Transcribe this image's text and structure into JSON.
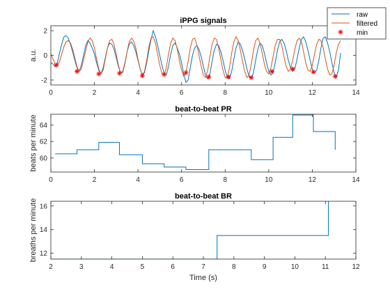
{
  "colors": {
    "raw": "#0072BD",
    "filtered": "#D95319",
    "min": "#FF0000",
    "axis": "#262626",
    "tick_text": "#262626"
  },
  "chart_data": [
    {
      "type": "line",
      "title": "iPPG signals",
      "xlabel": "",
      "ylabel": "a.u.",
      "xlim": [
        0,
        14
      ],
      "ylim": [
        -2.4,
        2.4
      ],
      "x_ticks": [
        0,
        2,
        4,
        6,
        8,
        10,
        12,
        14
      ],
      "y_ticks": [
        -2,
        0,
        2
      ],
      "legend": {
        "placement": "top-right",
        "entries": [
          "raw",
          "filtered",
          "min"
        ]
      },
      "series": [
        {
          "name": "raw",
          "style": "line",
          "x": [
            0.0,
            0.1,
            0.2,
            0.3,
            0.4,
            0.5,
            0.6,
            0.7,
            0.8,
            0.9,
            1.0,
            1.1,
            1.2,
            1.3,
            1.4,
            1.5,
            1.6,
            1.7,
            1.8,
            1.9,
            2.0,
            2.1,
            2.2,
            2.3,
            2.4,
            2.5,
            2.6,
            2.7,
            2.8,
            2.9,
            3.0,
            3.1,
            3.2,
            3.3,
            3.4,
            3.5,
            3.6,
            3.7,
            3.8,
            3.9,
            4.0,
            4.1,
            4.2,
            4.3,
            4.4,
            4.5,
            4.6,
            4.7,
            4.8,
            4.9,
            5.0,
            5.1,
            5.2,
            5.3,
            5.4,
            5.5,
            5.6,
            5.7,
            5.8,
            5.9,
            6.0,
            6.1,
            6.2,
            6.3,
            6.4,
            6.5,
            6.6,
            6.7,
            6.8,
            6.9,
            7.0,
            7.1,
            7.2,
            7.3,
            7.4,
            7.5,
            7.6,
            7.7,
            7.8,
            7.9,
            8.0,
            8.1,
            8.2,
            8.3,
            8.4,
            8.5,
            8.6,
            8.7,
            8.8,
            8.9,
            9.0,
            9.1,
            9.2,
            9.3,
            9.4,
            9.5,
            9.6,
            9.7,
            9.8,
            9.9,
            10.0,
            10.1,
            10.2,
            10.3,
            10.4,
            10.5,
            10.6,
            10.7,
            10.8,
            10.9,
            11.0,
            11.1,
            11.2,
            11.3,
            11.4,
            11.5,
            11.6,
            11.7,
            11.8,
            11.9,
            12.0,
            12.1,
            12.2,
            12.3,
            12.4,
            12.5,
            12.6,
            12.7,
            12.8,
            12.9,
            13.0,
            13.1,
            13.2,
            13.3
          ],
          "values": [
            -0.6,
            -0.7,
            -0.9,
            -0.6,
            0.2,
            0.9,
            1.5,
            1.6,
            1.4,
            0.9,
            0.3,
            -0.4,
            -1.0,
            -1.3,
            -0.8,
            0.0,
            0.8,
            1.2,
            1.0,
            0.6,
            0.1,
            -0.6,
            -1.2,
            -1.5,
            -1.0,
            -0.2,
            0.6,
            1.0,
            0.9,
            0.5,
            -0.2,
            -0.9,
            -1.4,
            -1.3,
            -0.6,
            0.3,
            0.9,
            1.1,
            0.8,
            0.3,
            -0.4,
            -1.1,
            -1.6,
            -1.4,
            -0.6,
            0.4,
            1.3,
            2.0,
            1.5,
            0.8,
            0.0,
            -0.8,
            -1.5,
            -1.6,
            -0.9,
            0.1,
            0.8,
            1.0,
            0.6,
            0.1,
            -0.6,
            -1.5,
            -2.2,
            -2.0,
            -1.0,
            0.0,
            0.6,
            0.8,
            0.5,
            -0.1,
            -0.9,
            -1.6,
            -1.9,
            -1.5,
            -0.5,
            0.4,
            0.9,
            0.8,
            0.3,
            -0.4,
            -1.2,
            -1.8,
            -1.9,
            -1.3,
            -0.3,
            0.6,
            1.1,
            0.9,
            0.4,
            -0.3,
            -1.1,
            -1.7,
            -1.9,
            -1.4,
            -0.4,
            0.5,
            1.0,
            0.8,
            0.2,
            -0.6,
            -1.3,
            -1.6,
            -1.4,
            -0.6,
            0.4,
            1.1,
            1.3,
            1.0,
            0.4,
            -0.4,
            -1.0,
            -1.3,
            -1.1,
            -0.3,
            0.6,
            1.3,
            1.5,
            1.1,
            0.4,
            -0.4,
            -1.1,
            -1.4,
            -1.2,
            -0.4,
            0.6,
            1.4,
            1.5,
            1.0,
            0.3,
            -0.6,
            -1.4,
            -1.8,
            -1.2,
            0.2
          ]
        },
        {
          "name": "filtered",
          "style": "line",
          "x": [
            0.0,
            0.1,
            0.2,
            0.3,
            0.4,
            0.5,
            0.6,
            0.7,
            0.8,
            0.9,
            1.0,
            1.1,
            1.2,
            1.3,
            1.4,
            1.5,
            1.6,
            1.7,
            1.8,
            1.9,
            2.0,
            2.1,
            2.2,
            2.3,
            2.4,
            2.5,
            2.6,
            2.7,
            2.8,
            2.9,
            3.0,
            3.1,
            3.2,
            3.3,
            3.4,
            3.5,
            3.6,
            3.7,
            3.8,
            3.9,
            4.0,
            4.1,
            4.2,
            4.3,
            4.4,
            4.5,
            4.6,
            4.7,
            4.8,
            4.9,
            5.0,
            5.1,
            5.2,
            5.3,
            5.4,
            5.5,
            5.6,
            5.7,
            5.8,
            5.9,
            6.0,
            6.1,
            6.2,
            6.3,
            6.4,
            6.5,
            6.6,
            6.7,
            6.8,
            6.9,
            7.0,
            7.1,
            7.2,
            7.3,
            7.4,
            7.5,
            7.6,
            7.7,
            7.8,
            7.9,
            8.0,
            8.1,
            8.2,
            8.3,
            8.4,
            8.5,
            8.6,
            8.7,
            8.8,
            8.9,
            9.0,
            9.1,
            9.2,
            9.3,
            9.4,
            9.5,
            9.6,
            9.7,
            9.8,
            9.9,
            10.0,
            10.1,
            10.2,
            10.3,
            10.4,
            10.5,
            10.6,
            10.7,
            10.8,
            10.9,
            11.0,
            11.1,
            11.2,
            11.3,
            11.4,
            11.5,
            11.6,
            11.7,
            11.8,
            11.9,
            12.0,
            12.1,
            12.2,
            12.3,
            12.4,
            12.5,
            12.6,
            12.7,
            12.8,
            12.9,
            13.0,
            13.1,
            13.2,
            13.3
          ],
          "values": [
            0.1,
            -0.3,
            -0.7,
            -0.8,
            -0.5,
            0.1,
            0.7,
            1.1,
            1.2,
            1.0,
            0.5,
            -0.2,
            -0.9,
            -1.3,
            -1.1,
            -0.4,
            0.4,
            1.1,
            1.4,
            1.2,
            0.6,
            -0.3,
            -1.1,
            -1.5,
            -1.2,
            -0.3,
            0.6,
            1.2,
            1.3,
            0.9,
            0.1,
            -0.8,
            -1.4,
            -1.4,
            -0.7,
            0.3,
            1.1,
            1.4,
            1.2,
            0.6,
            -0.3,
            -1.1,
            -1.6,
            -1.3,
            -0.4,
            0.7,
            1.4,
            1.5,
            1.0,
            0.1,
            -0.8,
            -1.5,
            -1.6,
            -1.0,
            0.1,
            1.0,
            1.4,
            1.2,
            0.5,
            -0.4,
            -1.2,
            -1.7,
            -1.4,
            -0.5,
            0.6,
            1.3,
            1.4,
            0.9,
            0.0,
            -0.9,
            -1.6,
            -1.8,
            -1.2,
            -0.1,
            0.9,
            1.4,
            1.3,
            0.6,
            -0.3,
            -1.2,
            -1.8,
            -1.8,
            -1.0,
            0.2,
            1.1,
            1.5,
            1.2,
            0.4,
            -0.5,
            -1.3,
            -1.8,
            -1.6,
            -0.7,
            0.4,
            1.2,
            1.4,
            1.0,
            0.2,
            -0.7,
            -1.3,
            -1.5,
            -1.0,
            -0.1,
            0.8,
            1.3,
            1.3,
            0.8,
            -0.1,
            -0.9,
            -1.3,
            -1.1,
            -0.4,
            0.5,
            1.2,
            1.4,
            1.1,
            0.3,
            -0.6,
            -1.2,
            -1.3,
            -0.8,
            0.1,
            0.9,
            1.3,
            1.2,
            0.6,
            -0.3,
            -1.1,
            -1.6,
            -1.5,
            -0.8,
            0.2,
            0.9,
            1.2
          ]
        },
        {
          "name": "min",
          "style": "marker",
          "x": [
            0.25,
            1.2,
            2.2,
            3.15,
            4.2,
            5.2,
            6.2,
            7.25,
            8.15,
            9.2,
            10.15,
            11.1,
            12.05,
            13.05
          ],
          "values": [
            -0.8,
            -1.3,
            -1.5,
            -1.45,
            -1.65,
            -1.55,
            -1.4,
            -1.75,
            -1.75,
            -1.8,
            -1.3,
            -1.1,
            -1.35,
            -1.7
          ]
        }
      ]
    },
    {
      "type": "line",
      "title": "beat-to-beat PR",
      "xlabel": "",
      "ylabel": "beats per minute",
      "xlim": [
        0,
        14
      ],
      "ylim": [
        58.3,
        65.3
      ],
      "x_ticks": [
        0,
        2,
        4,
        6,
        8,
        10,
        12,
        14
      ],
      "y_ticks": [
        60,
        62,
        64
      ],
      "series": [
        {
          "name": "",
          "style": "step",
          "x": [
            0.2,
            1.2,
            2.2,
            3.15,
            4.2,
            5.2,
            6.2,
            7.25,
            9.2,
            10.2,
            11.1,
            12.05,
            13.05
          ],
          "values": [
            60.5,
            61.0,
            61.9,
            60.4,
            59.3,
            58.9,
            58.6,
            61.0,
            59.8,
            62.5,
            65.2,
            63.2,
            61.0
          ]
        }
      ]
    },
    {
      "type": "line",
      "title": "beat-to-beat BR",
      "xlabel": "Time (s)",
      "ylabel": "breaths per minute",
      "xlim": [
        2,
        12
      ],
      "ylim": [
        11.5,
        16.4
      ],
      "x_ticks": [
        2,
        3,
        4,
        5,
        6,
        7,
        8,
        9,
        10,
        11,
        12
      ],
      "y_ticks": [
        12,
        14,
        16
      ],
      "series": [
        {
          "name": "",
          "style": "step",
          "x": [
            2.0,
            7.45,
            11.1
          ],
          "values": [
            11.5,
            13.5,
            16.4
          ]
        }
      ]
    }
  ]
}
